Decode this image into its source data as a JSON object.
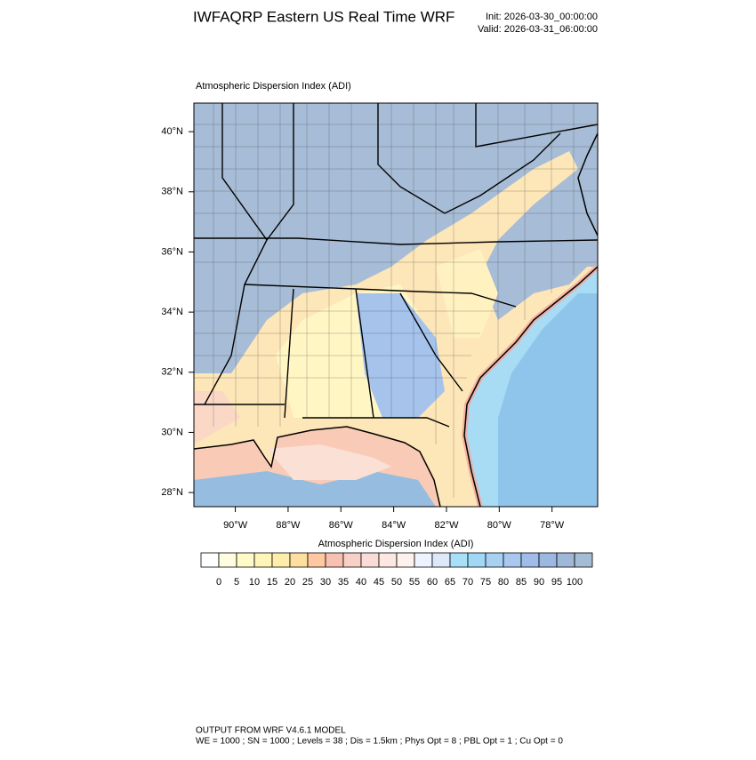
{
  "header": {
    "title": "IWFAQRP Eastern US Real Time WRF",
    "init": "Init: 2026-03-30_00:00:00",
    "valid": "Valid: 2026-03-31_06:00:00"
  },
  "map": {
    "subtitle": "Atmospheric Dispersion Index   (ADI)",
    "xlim": [
      -91.57,
      -76.27
    ],
    "ylim": [
      27.53,
      40.95
    ],
    "xticks": [
      {
        "value": -90,
        "label": "90°W"
      },
      {
        "value": -88,
        "label": "88°W"
      },
      {
        "value": -86,
        "label": "86°W"
      },
      {
        "value": -84,
        "label": "84°W"
      },
      {
        "value": -82,
        "label": "82°W"
      },
      {
        "value": -80,
        "label": "80°W"
      },
      {
        "value": -78,
        "label": "78°W"
      }
    ],
    "yticks": [
      {
        "value": 40,
        "label": "40°N"
      },
      {
        "value": 38,
        "label": "38°N"
      },
      {
        "value": 36,
        "label": "36°N"
      },
      {
        "value": 34,
        "label": "34°N"
      },
      {
        "value": 32,
        "label": "32°N"
      },
      {
        "value": 30,
        "label": "30°N"
      },
      {
        "value": 28,
        "label": "28°N"
      }
    ]
  },
  "colorbar": {
    "title": "Atmospheric Dispersion Index  (ADI)",
    "levels": [
      0,
      5,
      10,
      15,
      20,
      25,
      30,
      35,
      40,
      45,
      50,
      55,
      60,
      65,
      70,
      75,
      80,
      85,
      90,
      95,
      100
    ],
    "colors": [
      "#ffffff",
      "#fffde0",
      "#fffac8",
      "#fff5b8",
      "#ffeeaa",
      "#ffdfa0",
      "#ffc8a0",
      "#f8c0b0",
      "#f8d0c8",
      "#fadcd6",
      "#fce8e0",
      "#fdf2ec",
      "#eef4ff",
      "#dde9fb",
      "#a8e0fa",
      "#a0d8f5",
      "#a8d0f0",
      "#a8c8f0",
      "#a0bce8",
      "#9cb8e0",
      "#a0b8d8",
      "#a4bcd4"
    ]
  },
  "footer": {
    "line1": "OUTPUT FROM WRF V4.6.1 MODEL",
    "line2": "WE = 1000 ; SN = 1000 ; Levels = 38 ; Dis = 1.5km ; Phys Opt = 8 ; PBL Opt = 1 ; Cu Opt = 0"
  }
}
